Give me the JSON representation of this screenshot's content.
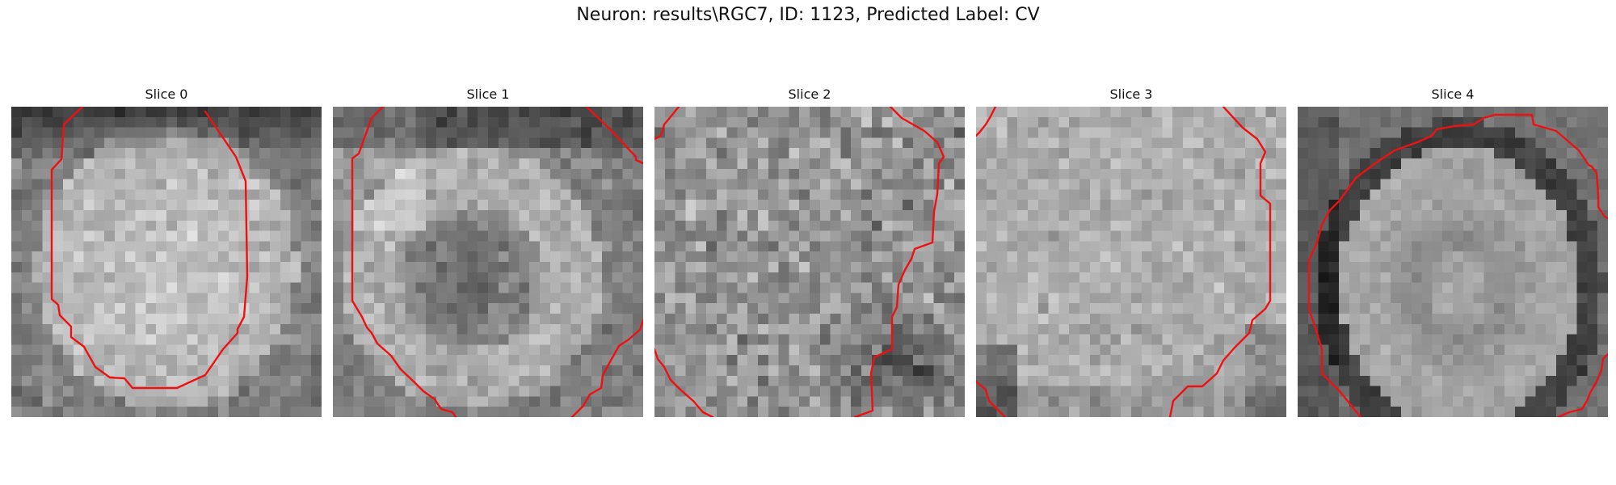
{
  "title": "Neuron: results\\RGC7, ID: 1123, Predicted Label: CV",
  "contour_color": "#ee1111",
  "panels": [
    {
      "label": "Slice 0",
      "appearance": "bright round soma occupying most of frame, dark band along top"
    },
    {
      "label": "Slice 1",
      "appearance": "soma with darker center, brighter lower ring"
    },
    {
      "label": "Slice 2",
      "appearance": "noisy texture, dark lower-right corner"
    },
    {
      "label": "Slice 3",
      "appearance": "bright uniform texture, dark bottom-left corner"
    },
    {
      "label": "Slice 4",
      "appearance": "smooth round soma with dark rim on left and top"
    }
  ]
}
